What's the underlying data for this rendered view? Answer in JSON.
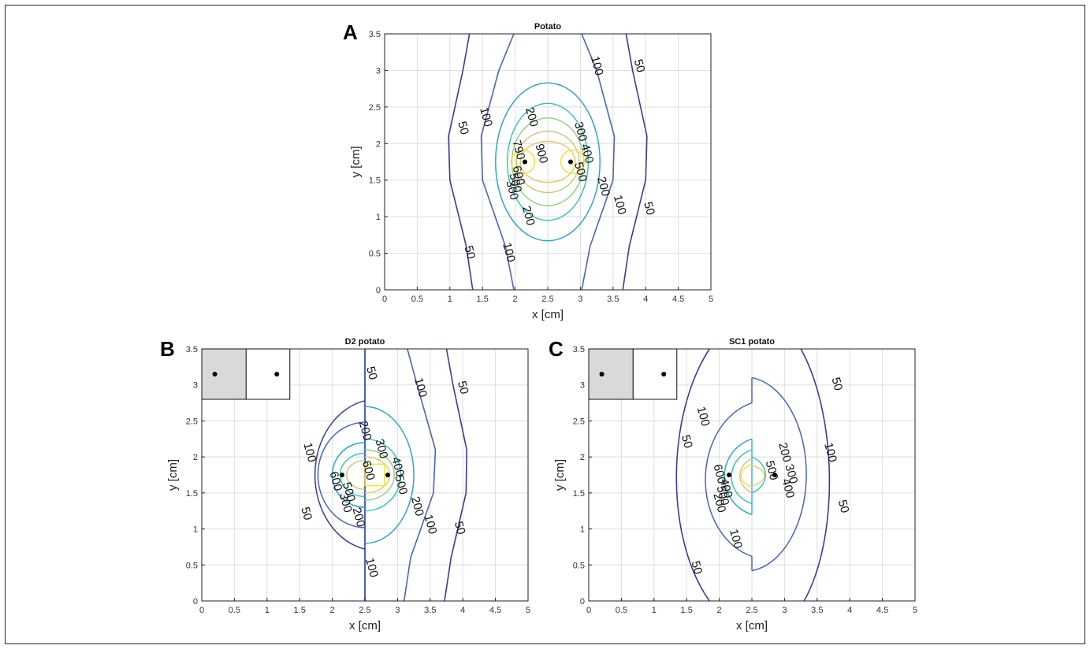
{
  "chart_data": [
    {
      "panel": "A",
      "type": "contour",
      "title": "Potato",
      "xlabel": "x [cm]",
      "ylabel": "y [cm]",
      "xlim": [
        0,
        5
      ],
      "ylim": [
        0,
        3.5
      ],
      "xticks": [
        "0",
        "0.5",
        "1",
        "1.5",
        "2",
        "2.5",
        "3",
        "3.5",
        "4",
        "4.5",
        "5"
      ],
      "yticks": [
        "0",
        "0.5",
        "1",
        "1.5",
        "2",
        "2.5",
        "3",
        "3.5"
      ],
      "grid": true,
      "electrodes": [
        [
          2.15,
          1.75
        ],
        [
          2.85,
          1.75
        ]
      ],
      "contour_labels": [
        {
          "text": "50",
          "x": 1.15,
          "y": 2.2
        },
        {
          "text": "100",
          "x": 1.5,
          "y": 2.35
        },
        {
          "text": "200",
          "x": 2.2,
          "y": 2.35
        },
        {
          "text": "300",
          "x": 2.95,
          "y": 2.15
        },
        {
          "text": "790",
          "x": 2.0,
          "y": 1.9
        },
        {
          "text": "900",
          "x": 2.35,
          "y": 1.85
        },
        {
          "text": "400",
          "x": 3.05,
          "y": 1.85
        },
        {
          "text": "500",
          "x": 2.95,
          "y": 1.6
        },
        {
          "text": "600",
          "x": 2.0,
          "y": 1.55
        },
        {
          "text": "500",
          "x": 1.95,
          "y": 1.45
        },
        {
          "text": "300",
          "x": 1.9,
          "y": 1.35
        },
        {
          "text": "200",
          "x": 3.3,
          "y": 1.4
        },
        {
          "text": "200",
          "x": 2.15,
          "y": 1.0
        },
        {
          "text": "100",
          "x": 3.55,
          "y": 1.15
        },
        {
          "text": "50",
          "x": 4.0,
          "y": 1.1
        },
        {
          "text": "50",
          "x": 1.25,
          "y": 0.5
        },
        {
          "text": "100",
          "x": 1.85,
          "y": 0.5
        },
        {
          "text": "100",
          "x": 3.2,
          "y": 3.05
        },
        {
          "text": "50",
          "x": 3.85,
          "y": 3.05
        }
      ]
    },
    {
      "panel": "B",
      "type": "contour",
      "title": "D2    potato",
      "xlabel": "x [cm]",
      "ylabel": "y [cm]",
      "xlim": [
        0,
        5
      ],
      "ylim": [
        0,
        3.5
      ],
      "xticks": [
        "0",
        "0.5",
        "1",
        "1.5",
        "2",
        "2.5",
        "3",
        "3.5",
        "4",
        "4.5",
        "5"
      ],
      "yticks": [
        "0",
        "0.5",
        "1",
        "1.5",
        "2",
        "2.5",
        "3",
        "3.5"
      ],
      "grid": true,
      "electrodes": [
        [
          2.15,
          1.75
        ],
        [
          2.85,
          1.75
        ]
      ],
      "inset_electrodes": [
        [
          0.2,
          3.15
        ],
        [
          1.15,
          3.15
        ]
      ],
      "contour_labels": [
        {
          "text": "50",
          "x": 2.55,
          "y": 3.15
        },
        {
          "text": "100",
          "x": 3.3,
          "y": 2.95
        },
        {
          "text": "50",
          "x": 3.95,
          "y": 2.95
        },
        {
          "text": "200",
          "x": 2.45,
          "y": 2.35
        },
        {
          "text": "100",
          "x": 1.6,
          "y": 2.05
        },
        {
          "text": "300",
          "x": 2.7,
          "y": 2.1
        },
        {
          "text": "600",
          "x": 2.5,
          "y": 1.8
        },
        {
          "text": "400",
          "x": 2.95,
          "y": 1.85
        },
        {
          "text": "600",
          "x": 2.0,
          "y": 1.65
        },
        {
          "text": "500",
          "x": 2.2,
          "y": 1.5
        },
        {
          "text": "500",
          "x": 3.0,
          "y": 1.6
        },
        {
          "text": "300",
          "x": 2.15,
          "y": 1.35
        },
        {
          "text": "200",
          "x": 2.35,
          "y": 1.15
        },
        {
          "text": "200",
          "x": 3.25,
          "y": 1.3
        },
        {
          "text": "50",
          "x": 1.55,
          "y": 1.2
        },
        {
          "text": "100",
          "x": 3.45,
          "y": 1.05
        },
        {
          "text": "50",
          "x": 3.9,
          "y": 1.0
        },
        {
          "text": "100",
          "x": 2.55,
          "y": 0.45
        }
      ]
    },
    {
      "panel": "C",
      "type": "contour",
      "title": "SC1    potato",
      "xlabel": "x [cm]",
      "ylabel": "y [cm]",
      "xlim": [
        0,
        5
      ],
      "ylim": [
        0,
        3.5
      ],
      "xticks": [
        "0",
        "0.5",
        "1",
        "1.5",
        "2",
        "2.5",
        "3",
        "3.5",
        "4",
        "4.5",
        "5"
      ],
      "yticks": [
        "0",
        "0.5",
        "1",
        "1.5",
        "2",
        "2.5",
        "3",
        "3.5"
      ],
      "grid": true,
      "electrodes": [
        [
          2.15,
          1.75
        ],
        [
          2.85,
          1.75
        ]
      ],
      "inset_electrodes": [
        [
          0.2,
          3.15
        ],
        [
          1.15,
          3.15
        ]
      ],
      "contour_labels": [
        {
          "text": "50",
          "x": 3.75,
          "y": 3.0
        },
        {
          "text": "100",
          "x": 1.7,
          "y": 2.55
        },
        {
          "text": "50",
          "x": 1.45,
          "y": 2.2
        },
        {
          "text": "200",
          "x": 2.95,
          "y": 2.05
        },
        {
          "text": "500",
          "x": 2.75,
          "y": 1.8
        },
        {
          "text": "300",
          "x": 3.05,
          "y": 1.75
        },
        {
          "text": "100",
          "x": 3.65,
          "y": 2.05
        },
        {
          "text": "600",
          "x": 1.95,
          "y": 1.75
        },
        {
          "text": "400",
          "x": 2.05,
          "y": 1.55
        },
        {
          "text": "400",
          "x": 3.0,
          "y": 1.55
        },
        {
          "text": "500",
          "x": 2.0,
          "y": 1.45
        },
        {
          "text": "200",
          "x": 1.95,
          "y": 1.35
        },
        {
          "text": "50",
          "x": 3.85,
          "y": 1.3
        },
        {
          "text": "100",
          "x": 2.2,
          "y": 0.85
        },
        {
          "text": "50",
          "x": 1.6,
          "y": 0.45
        }
      ]
    }
  ],
  "panel_letters": [
    "A",
    "B",
    "C"
  ],
  "colors": {
    "c50": "#3c3aa0",
    "c100": "#4a63c0",
    "c200": "#2aa6cf",
    "c300": "#29c6b0",
    "c400": "#8fd07c",
    "c500": "#c6c67a",
    "c600": "#e8c85e",
    "chigh": "#f5e23a",
    "grid": "#dedede",
    "axis": "#222222"
  }
}
